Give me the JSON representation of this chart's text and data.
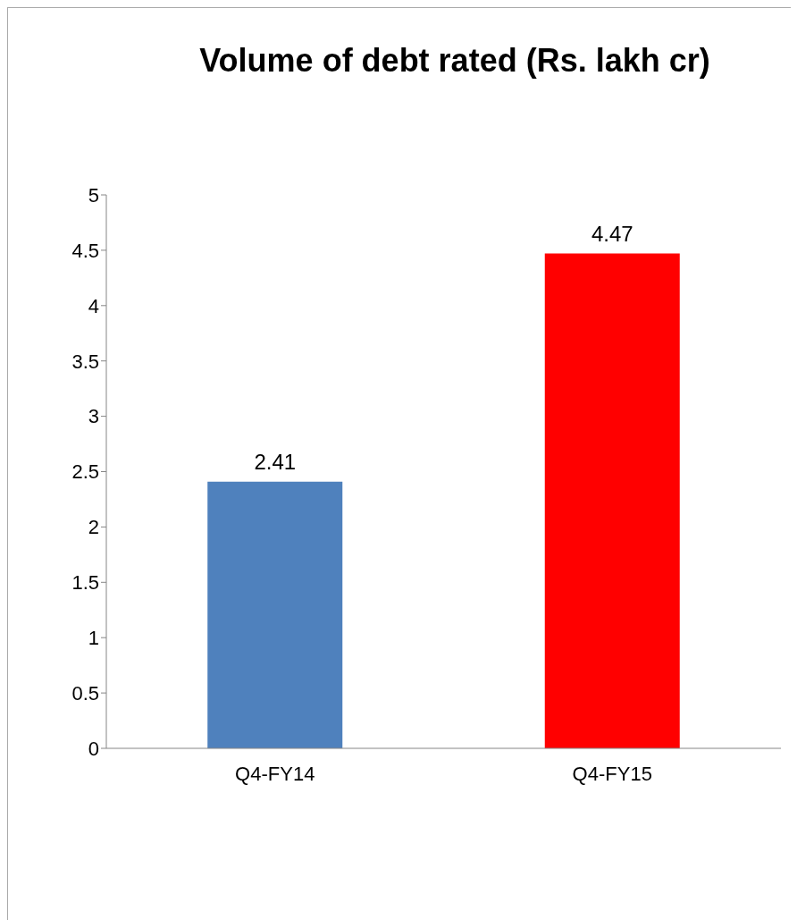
{
  "chart_data": {
    "type": "bar",
    "title": "Volume of debt rated (Rs. lakh cr)",
    "categories": [
      "Q4-FY14",
      "Q4-FY15"
    ],
    "values": [
      2.41,
      4.47
    ],
    "colors": [
      "#4f81bd",
      "#ff0000"
    ],
    "ylim": [
      0,
      5
    ],
    "yticks": [
      0,
      0.5,
      1,
      1.5,
      2,
      2.5,
      3,
      3.5,
      4,
      4.5,
      5
    ],
    "grid": false,
    "data_labels": true
  }
}
